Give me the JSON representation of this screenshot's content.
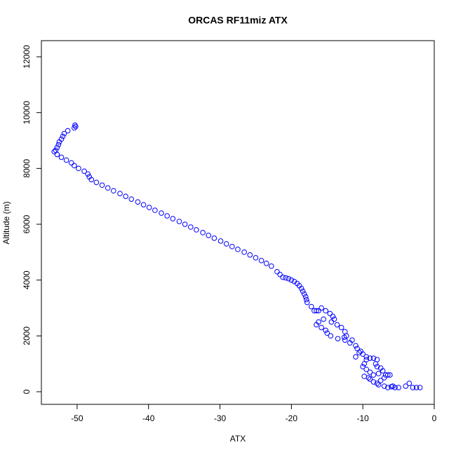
{
  "chart_data": {
    "type": "scatter",
    "title": "ORCAS RF11miz ATX",
    "x_label": "ATX",
    "y_label": "Altitude (m)",
    "xlim": [
      -55,
      0
    ],
    "ylim": [
      -452,
      12578
    ],
    "xticks": [
      -50,
      -40,
      -30,
      -20,
      -10,
      0
    ],
    "yticks": [
      0,
      2000,
      4000,
      6000,
      8000,
      10000,
      12000
    ],
    "series": [
      {
        "color": "#0000ff",
        "x": [
          -50.3,
          -50.2,
          -50.4,
          -51.3,
          -51.8,
          -52.0,
          -52.2,
          -52.5,
          -52.6,
          -52.8,
          -53.0,
          -53.2,
          -52.8,
          -52.2,
          -51.5,
          -50.8,
          -50.4,
          -49.8,
          -49.0,
          -48.5,
          -48.3,
          -48.0,
          -47.3,
          -46.5,
          -45.7,
          -44.9,
          -44.0,
          -43.2,
          -42.4,
          -41.5,
          -40.7,
          -39.9,
          -39.1,
          -38.2,
          -37.4,
          -36.6,
          -35.7,
          -34.9,
          -34.1,
          -33.3,
          -32.4,
          -31.6,
          -30.8,
          -29.9,
          -29.1,
          -28.3,
          -27.5,
          -26.6,
          -25.8,
          -25.0,
          -24.2,
          -23.5,
          -22.8,
          -22.0,
          -21.6,
          -21.2,
          -20.8,
          -20.4,
          -20.0,
          -19.6,
          -19.2,
          -18.9,
          -18.6,
          -18.4,
          -18.2,
          -18.0,
          -17.9,
          -17.8,
          -17.2,
          -16.8,
          -16.5,
          -16.2,
          -15.8,
          -15.2,
          -14.6,
          -14.2,
          -14.0,
          -14.4,
          -13.6,
          -13.0,
          -12.5,
          -12.3,
          -12.6,
          -15.5,
          -16.2,
          -16.5,
          -15.8,
          -15.2,
          -15.0,
          -14.5,
          -13.5,
          -12.5,
          -11.8,
          -11.0,
          -10.8,
          -10.3,
          -10.0,
          -9.5,
          -9.0,
          -8.5,
          -8.0,
          -9.5,
          -9.8,
          -10.0,
          -9.5,
          -9.0,
          -8.5,
          -8.0,
          -7.5,
          -7.2,
          -6.8,
          -6.5,
          -6.2,
          -7.0,
          -7.5,
          -8.0,
          -8.5,
          -9.2,
          -9.8,
          -9.0,
          -7.8,
          -7.0,
          -6.5,
          -6.0,
          -5.5,
          -5.0,
          -4.0,
          -3.5,
          -3.0,
          -2.5,
          -2.0,
          -10.5,
          -11.0,
          -11.5,
          -8.2,
          -7.8,
          -5.8
        ],
        "values": [
          9550,
          9500,
          9450,
          9350,
          9250,
          9150,
          9050,
          8950,
          8850,
          8750,
          8650,
          8600,
          8500,
          8400,
          8300,
          8200,
          8100,
          8000,
          7900,
          7800,
          7700,
          7600,
          7500,
          7400,
          7300,
          7200,
          7100,
          7000,
          6900,
          6800,
          6700,
          6600,
          6500,
          6400,
          6300,
          6200,
          6100,
          6000,
          5900,
          5800,
          5700,
          5600,
          5500,
          5400,
          5300,
          5200,
          5100,
          5000,
          4900,
          4800,
          4700,
          4600,
          4500,
          4300,
          4200,
          4100,
          4080,
          4050,
          4000,
          3950,
          3880,
          3800,
          3700,
          3600,
          3500,
          3400,
          3300,
          3200,
          3050,
          2900,
          2900,
          2900,
          3000,
          2900,
          2800,
          2700,
          2600,
          2500,
          2400,
          2300,
          2150,
          2000,
          1950,
          2600,
          2500,
          2400,
          2300,
          2200,
          2100,
          2000,
          1900,
          1850,
          1750,
          1650,
          1550,
          1450,
          1350,
          1250,
          1200,
          1200,
          1150,
          1150,
          1000,
          900,
          800,
          700,
          600,
          900,
          850,
          750,
          600,
          600,
          600,
          500,
          400,
          300,
          350,
          500,
          550,
          450,
          250,
          200,
          150,
          180,
          150,
          150,
          200,
          300,
          150,
          150,
          150,
          1400,
          1250,
          1850,
          1000,
          650,
          200
        ]
      }
    ]
  }
}
